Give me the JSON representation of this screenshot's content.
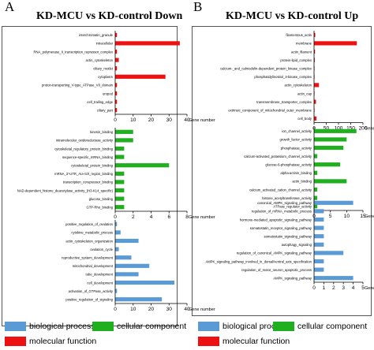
{
  "colors": {
    "biological": "#5b9bd5",
    "cellular": "#1faf1f",
    "molecular": "#ee1111"
  },
  "panelA": {
    "letter": "A",
    "title": "KD-MCU vs KD-control  Down"
  },
  "panelB": {
    "letter": "B",
    "title": "KD-MCU vs KD-control  Up"
  },
  "legend": {
    "biological": "biological process",
    "cellular": "cellular component",
    "molecular": "molecular function"
  },
  "chart_data": [
    {
      "panel": "A",
      "group": "cellular component",
      "type": "bar",
      "orientation": "horizontal",
      "color": "#ee1111",
      "xlabel": "Gene number",
      "xlim": [
        0,
        40
      ],
      "xticks": [
        0,
        10,
        20,
        30,
        40
      ],
      "categories": [
        "interchromatin_granule",
        "intracellular",
        "RNA_polymerase_II_transcription_repressor_complex",
        "actin_cytoskeleton",
        "ciliary_rootlet",
        "cytoplasm",
        "proton-transporting_V-type_ATPase_V0_domain",
        "uropod",
        "cell_trailing_edge",
        "ciliary_part"
      ],
      "values": [
        1,
        36,
        1,
        2,
        1,
        28,
        1,
        1,
        1,
        1
      ]
    },
    {
      "panel": "A",
      "group": "molecular function",
      "type": "bar",
      "orientation": "horizontal",
      "color": "#1faf1f",
      "xlabel": "Gene number",
      "xlim": [
        0,
        8
      ],
      "xticks": [
        0,
        2,
        4,
        6,
        8
      ],
      "categories": [
        "kinesin_binding",
        "intramolecular_oxidoreductase_activity",
        "cytoskeletal_regulatory_protein_binding",
        "sequence-specific_mRNA_binding",
        "cytoskeletal_protein_binding",
        "mRNA_3'-UTR_AU-rich_region_binding",
        "transcription_corepressor_binding",
        "NAD-dependent_histone_deacetylase_activity_(H3-K14_specific)",
        "glucose_binding",
        "GTP-Rho_binding"
      ],
      "values": [
        2,
        2,
        1,
        1,
        6,
        1,
        1,
        1,
        1,
        1
      ]
    },
    {
      "panel": "A",
      "group": "biological process",
      "type": "bar",
      "orientation": "horizontal",
      "color": "#5b9bd5",
      "xlabel": "Gene number",
      "xlim": [
        0,
        40
      ],
      "xticks": [
        0,
        10,
        20,
        30,
        40
      ],
      "categories": [
        "positive_regulation_of_ovulation",
        "cytokine_metabolic_process",
        "actin_cytoskeleton_organization",
        "ovulation_cycle",
        "reproductive_system_development",
        "mitochondrial_development",
        "tube_development",
        "cell_development",
        "activation_of_GTPase_activity",
        "positive_regulation_of_signaling"
      ],
      "values": [
        1,
        3,
        13,
        2,
        9,
        19,
        13,
        33,
        1,
        26
      ]
    },
    {
      "panel": "B",
      "group": "cellular component",
      "type": "bar",
      "orientation": "horizontal",
      "color": "#ee1111",
      "xlabel": "Gene number",
      "xlim": [
        0,
        200
      ],
      "xticks": [
        0,
        50,
        100,
        150,
        200
      ],
      "categories": [
        "filamentous_actin",
        "membrane",
        "actin_filament",
        "protein-lipid_complex",
        "calcium-_and_calmodulin-dependent_protein_kinase_complex",
        "phosphatidylinositol_3-kinase_complex",
        "actin_cytoskeleton",
        "actin_cap",
        "transmembrane_transporter_complex",
        "extrinsic_component_of_mitochondrial_outer_membrane",
        "cell_body"
      ],
      "values": [
        5,
        175,
        4,
        3,
        2,
        2,
        20,
        2,
        8,
        2,
        10
      ]
    },
    {
      "panel": "B",
      "group": "molecular function",
      "type": "bar",
      "orientation": "horizontal",
      "color": "#1faf1f",
      "xlabel": "Gene number",
      "xlim": [
        0,
        15
      ],
      "xticks": [
        0,
        5,
        10,
        15
      ],
      "categories": [
        "ion_channel_activity",
        "growth_factor_activity",
        "phosphatase_activity",
        "calcium-activated_potassium_channel_activity",
        "glucose-6-phosphatase_activity",
        "alpha-actinin_binding",
        "actin_binding",
        "calcium_activated_cation_channel_activity",
        "histone_acetyltransferase_activity",
        "ATPase_regulator_activity"
      ],
      "values": [
        13,
        10,
        9,
        1,
        8,
        1,
        10,
        1,
        1,
        1
      ]
    },
    {
      "panel": "B",
      "group": "biological process",
      "type": "bar",
      "orientation": "horizontal",
      "color": "#5b9bd5",
      "xlabel": "Gene number",
      "xlim": [
        0,
        5
      ],
      "xticks": [
        0,
        1,
        2,
        3,
        4,
        5
      ],
      "categories": [
        "canonical_AMPK_signaling_pathway",
        "regulation_of_mRNA_metabolic_process",
        "hormone-mediated_apoptotic_signaling_pathway",
        "somatostatin_receptor_signaling_pathway",
        "somatostatin_signaling_pathway",
        "autophagy_signaling",
        "regulation_of_canonical_AMPK_signaling_pathway",
        "AMPK_signaling_pathway_involved_in_dorsal/ventral_axis_specification",
        "regulation_of_motor_neuron_apoptotic_process",
        "AMPK_signaling_pathway"
      ],
      "values": [
        4,
        1,
        1,
        1,
        1,
        1,
        3,
        1,
        1,
        4
      ]
    }
  ]
}
